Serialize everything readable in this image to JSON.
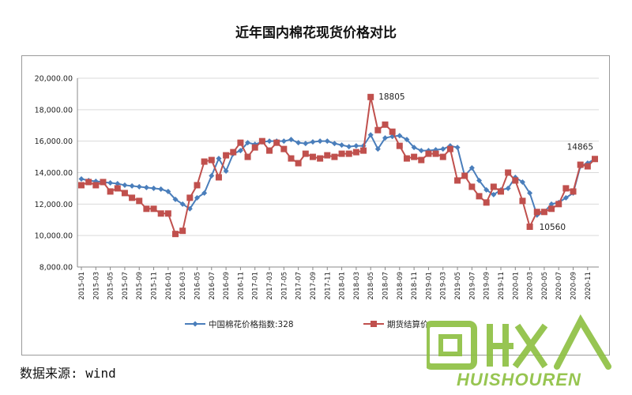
{
  "title": "近年国内棉花现货价格对比",
  "source_note": "数据来源: wind",
  "watermark": "HUISHOUREN",
  "chart_data": {
    "type": "line",
    "y_ticks": [
      "8,000.00",
      "10,000.00",
      "12,000.00",
      "14,000.00",
      "16,000.00",
      "18,000.00",
      "20,000.00"
    ],
    "ylim": [
      8000,
      20000
    ],
    "x_tick_labels": [
      "2015-01",
      "2015-03",
      "2015-05",
      "2015-07",
      "2015-09",
      "2015-11",
      "2016-01",
      "2016-03",
      "2016-05",
      "2016-07",
      "2016-09",
      "2016-11",
      "2017-01",
      "2017-03",
      "2017-05",
      "2017-07",
      "2017-09",
      "2017-11",
      "2018-01",
      "2018-03",
      "2018-05",
      "2018-07",
      "2018-09",
      "2018-11",
      "2019-01",
      "2019-03",
      "2019-05",
      "2019-07",
      "2019-09",
      "2019-11",
      "2020-01",
      "2020-03",
      "2020-05",
      "2020-07",
      "2020-09",
      "2020-11"
    ],
    "grid": true,
    "legend_position": "bottom",
    "series": [
      {
        "name": "中国棉花价格指数:328",
        "color": "#4a7ebb",
        "marker": "diamond",
        "values": [
          13600,
          13500,
          13450,
          13400,
          13350,
          13300,
          13200,
          13150,
          13100,
          13050,
          13000,
          12950,
          12800,
          12300,
          12000,
          11700,
          12400,
          12700,
          13800,
          14900,
          14100,
          15200,
          15400,
          15900,
          15800,
          15950,
          16000,
          16000,
          16000,
          16100,
          15900,
          15850,
          15950,
          16000,
          16000,
          15850,
          15750,
          15650,
          15700,
          15700,
          16400,
          15500,
          16200,
          16300,
          16350,
          16100,
          15600,
          15400,
          15400,
          15450,
          15500,
          15700,
          15600,
          13800,
          14300,
          13500,
          12900,
          12600,
          12900,
          13000,
          13700,
          13400,
          12700,
          11300,
          11500,
          12000,
          12100,
          12400,
          12700,
          14400,
          14600,
          14865
        ],
        "annotations": []
      },
      {
        "name": "期货结算价",
        "color": "#c0504d",
        "marker": "square",
        "values": [
          13200,
          13400,
          13200,
          13400,
          12800,
          13000,
          12700,
          12400,
          12200,
          11700,
          11700,
          11400,
          11400,
          10100,
          10300,
          12400,
          13200,
          14700,
          14800,
          13700,
          15100,
          15300,
          15900,
          15000,
          15600,
          16000,
          15400,
          15900,
          15500,
          14900,
          14600,
          15200,
          15000,
          14900,
          15100,
          15000,
          15200,
          15200,
          15300,
          15400,
          18805,
          16700,
          17050,
          16600,
          15700,
          14900,
          15000,
          14800,
          15200,
          15200,
          15000,
          15500,
          13500,
          13800,
          13100,
          12500,
          12100,
          13100,
          12800,
          14000,
          13500,
          12200,
          10560,
          11500,
          11500,
          11700,
          12000,
          13000,
          12800,
          14500,
          14400,
          14865
        ],
        "annotations": [
          {
            "index": 40,
            "label": "18805"
          },
          {
            "index": 62,
            "label": "10560"
          },
          {
            "index": 71,
            "label": "14865"
          }
        ]
      }
    ]
  }
}
